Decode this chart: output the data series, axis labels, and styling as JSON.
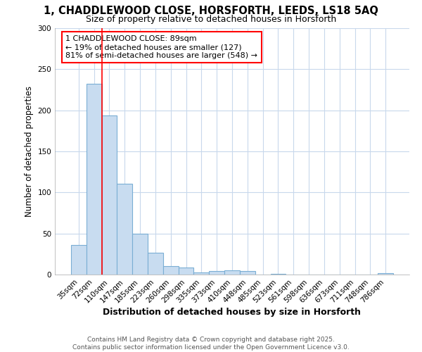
{
  "title_line1": "1, CHADDLEWOOD CLOSE, HORSFORTH, LEEDS, LS18 5AQ",
  "title_line2": "Size of property relative to detached houses in Horsforth",
  "xlabel": "Distribution of detached houses by size in Horsforth",
  "ylabel": "Number of detached properties",
  "bar_labels": [
    "35sqm",
    "72sqm",
    "110sqm",
    "147sqm",
    "185sqm",
    "223sqm",
    "260sqm",
    "298sqm",
    "335sqm",
    "373sqm",
    "410sqm",
    "448sqm",
    "485sqm",
    "523sqm",
    "561sqm",
    "598sqm",
    "636sqm",
    "673sqm",
    "711sqm",
    "748sqm",
    "786sqm"
  ],
  "bar_values": [
    36,
    232,
    194,
    111,
    50,
    27,
    10,
    9,
    3,
    4,
    5,
    4,
    0,
    1,
    0,
    0,
    0,
    0,
    0,
    0,
    2
  ],
  "bar_color": "#c8dcf0",
  "bar_edgecolor": "#7aaed4",
  "annotation_text_line1": "1 CHADDLEWOOD CLOSE: 89sqm",
  "annotation_text_line2": "← 19% of detached houses are smaller (127)",
  "annotation_text_line3": "81% of semi-detached houses are larger (548) →",
  "red_line_bin": 1,
  "ylim": [
    0,
    300
  ],
  "yticks": [
    0,
    50,
    100,
    150,
    200,
    250,
    300
  ],
  "footer_line1": "Contains HM Land Registry data © Crown copyright and database right 2025.",
  "footer_line2": "Contains public sector information licensed under the Open Government Licence v3.0.",
  "background_color": "#ffffff",
  "grid_color": "#c8d8ec"
}
